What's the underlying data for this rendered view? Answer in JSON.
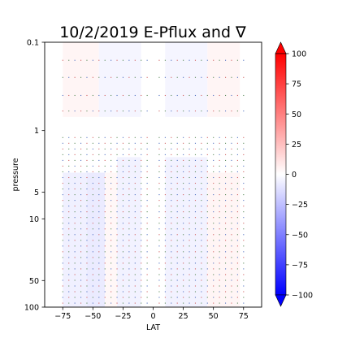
{
  "chart_data": {
    "type": "heatmap",
    "title": "10/2/2019 E-Pflux and ∇",
    "xlabel": "LAT",
    "ylabel": "pressure",
    "xlim": [
      -90,
      90
    ],
    "ylim": [
      100,
      0.1
    ],
    "yscale": "log",
    "x_ticks": [
      {
        "value": -75,
        "label": "−75"
      },
      {
        "value": -50,
        "label": "−50"
      },
      {
        "value": -25,
        "label": "−25"
      },
      {
        "value": 0,
        "label": "0"
      },
      {
        "value": 25,
        "label": "25"
      },
      {
        "value": 50,
        "label": "50"
      },
      {
        "value": 75,
        "label": "75"
      }
    ],
    "y_ticks": [
      {
        "value": 0.1,
        "label": "0.1"
      },
      {
        "value": 1,
        "label": "1"
      },
      {
        "value": 5,
        "label": "5"
      },
      {
        "value": 10,
        "label": "10"
      },
      {
        "value": 50,
        "label": "50"
      },
      {
        "value": 100,
        "label": "100"
      }
    ],
    "colorbar": {
      "colormap": "bwr",
      "range": [
        -100,
        100
      ],
      "extend": "both",
      "min_color": "#0000ff",
      "mid_color": "#ffffff",
      "max_color": "#ff0000",
      "ticks": [
        {
          "value": 100,
          "label": "100"
        },
        {
          "value": 75,
          "label": "75"
        },
        {
          "value": 50,
          "label": "50"
        },
        {
          "value": 25,
          "label": "25"
        },
        {
          "value": 0,
          "label": "0"
        },
        {
          "value": -25,
          "label": "−25"
        },
        {
          "value": -50,
          "label": "−50"
        },
        {
          "value": -75,
          "label": "−75"
        },
        {
          "value": -100,
          "label": "−100"
        }
      ]
    },
    "field_regions": [
      {
        "lat": [
          -75,
          -45
        ],
        "pressure": [
          0.1,
          0.7
        ],
        "value": 4
      },
      {
        "lat": [
          -45,
          -10
        ],
        "pressure": [
          0.1,
          0.7
        ],
        "value": -4
      },
      {
        "lat": [
          10,
          45
        ],
        "pressure": [
          0.1,
          0.7
        ],
        "value": -4
      },
      {
        "lat": [
          45,
          72
        ],
        "pressure": [
          0.1,
          0.7
        ],
        "value": 4
      },
      {
        "lat": [
          -75,
          -55
        ],
        "pressure": [
          3,
          100
        ],
        "value": -6
      },
      {
        "lat": [
          -55,
          -40
        ],
        "pressure": [
          3,
          100
        ],
        "value": -8
      },
      {
        "lat": [
          -40,
          -30
        ],
        "pressure": [
          3,
          100
        ],
        "value": 3
      },
      {
        "lat": [
          -30,
          -10
        ],
        "pressure": [
          2,
          100
        ],
        "value": -5
      },
      {
        "lat": [
          10,
          45
        ],
        "pressure": [
          2,
          100
        ],
        "value": -5
      },
      {
        "lat": [
          45,
          72
        ],
        "pressure": [
          3,
          100
        ],
        "value": 4
      }
    ],
    "vector_grid": {
      "lat_start": -75,
      "lat_step": 5,
      "lat_count": 31,
      "gap_lat": [
        -5,
        5
      ],
      "pressure_upper": [
        0.16,
        0.25,
        0.4,
        0.6
      ],
      "pressure_lower_start": 1.2,
      "pressure_lower_end": 90,
      "pressure_lower_count": 30,
      "colors": [
        "#d06060",
        "#5a8a5a",
        "#5070c0"
      ]
    }
  }
}
